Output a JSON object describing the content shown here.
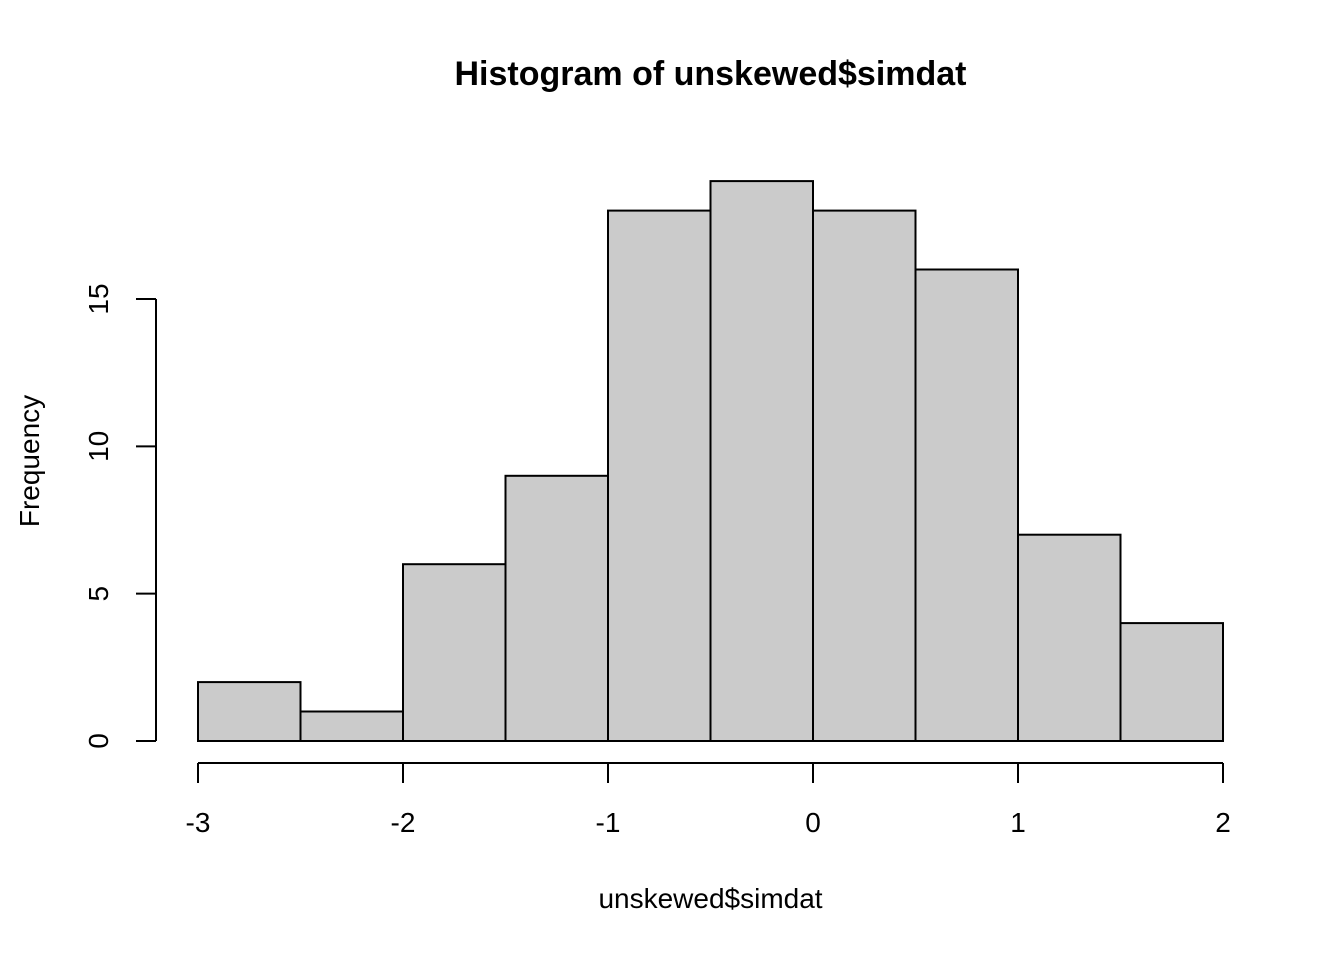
{
  "chart_data": {
    "type": "histogram",
    "title": "Histogram of unskewed$simdat",
    "xlabel": "unskewed$simdat",
    "ylabel": "Frequency",
    "bin_edges": [
      -3,
      -2.5,
      -2,
      -1.5,
      -1,
      -0.5,
      0,
      0.5,
      1,
      1.5,
      2
    ],
    "counts": [
      2,
      1,
      6,
      9,
      18,
      19,
      18,
      16,
      7,
      4
    ],
    "x_ticks": [
      -3,
      -2,
      -1,
      0,
      1,
      2
    ],
    "x_tick_labels": [
      "-3",
      "-2",
      "-1",
      "0",
      "1",
      "2"
    ],
    "y_ticks": [
      0,
      5,
      10,
      15
    ],
    "y_tick_labels": [
      "0",
      "5",
      "10",
      "15"
    ],
    "xlim": [
      -3,
      2
    ],
    "ylim": [
      0,
      19
    ],
    "bar_fill": "#cbcbcb",
    "bar_stroke": "#000000",
    "axis_color": "#000000",
    "background": "#ffffff",
    "grid": false,
    "legend": false
  }
}
